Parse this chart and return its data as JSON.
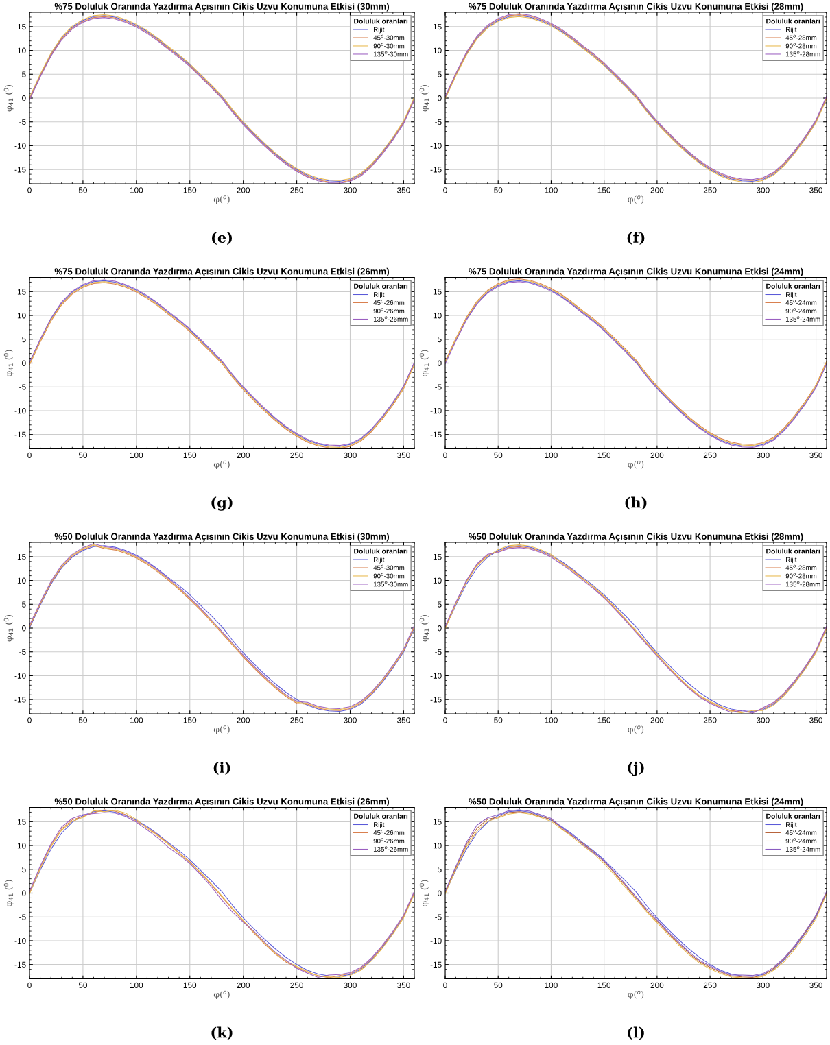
{
  "chart_data": [
    {
      "type": "line",
      "title": "%75 Doluluk Oranında Yazdırma Açısının Cikis Uzvu Konumuna Etkisi (30mm)",
      "xlabel": "φ($^{o}$)",
      "ylabel": "φ$_{41}$ ($^{0}$)",
      "legend_title": "Doluluk oranları",
      "annotations": [
        "(e)"
      ],
      "legend": "top right",
      "grid": true,
      "xlim": [
        0,
        360
      ],
      "ylim": [
        -18,
        18
      ],
      "xticks": [
        0,
        50,
        100,
        150,
        200,
        250,
        300,
        350
      ],
      "yticks": [
        -15,
        -10,
        -5,
        0,
        5,
        10,
        15
      ],
      "x": [
        0,
        10,
        20,
        30,
        40,
        50,
        60,
        70,
        80,
        90,
        100,
        110,
        120,
        130,
        140,
        150,
        160,
        170,
        180,
        190,
        200,
        210,
        220,
        230,
        240,
        250,
        260,
        270,
        280,
        290,
        300,
        310,
        320,
        330,
        340,
        350,
        360
      ],
      "series": [
        {
          "name": "Rijit",
          "color": "#5a5ad8",
          "values": [
            0,
            4.8,
            9.2,
            12.6,
            14.9,
            16.3,
            17.1,
            17.3,
            17.0,
            16.3,
            15.3,
            14.0,
            12.4,
            10.6,
            8.9,
            7.0,
            4.8,
            2.6,
            0.3,
            -2.6,
            -5.2,
            -7.5,
            -9.7,
            -11.7,
            -13.5,
            -15.0,
            -16.2,
            -17.0,
            -17.4,
            -17.5,
            -17.1,
            -16.0,
            -14.0,
            -11.4,
            -8.4,
            -5.0,
            0
          ]
        },
        {
          "name": "45$^{o}$-30mm",
          "color": "#d9804f",
          "values": [
            -0.2,
            4.6,
            9.0,
            12.4,
            14.7,
            16.1,
            16.9,
            17.1,
            16.8,
            16.1,
            15.1,
            13.8,
            12.2,
            10.4,
            8.7,
            6.8,
            4.6,
            2.4,
            0.1,
            -2.8,
            -5.4,
            -7.7,
            -9.9,
            -11.9,
            -13.7,
            -15.2,
            -16.4,
            -17.2,
            -17.6,
            -17.7,
            -17.3,
            -16.2,
            -14.2,
            -11.6,
            -8.6,
            -5.2,
            -0.2
          ]
        },
        {
          "name": "90$^{o}$-30mm",
          "color": "#e8b84a",
          "values": [
            0.2,
            5.0,
            9.4,
            12.8,
            15.1,
            16.5,
            17.3,
            17.5,
            17.2,
            16.5,
            15.5,
            14.2,
            12.6,
            10.8,
            9.1,
            7.2,
            5.0,
            2.8,
            0.5,
            -2.4,
            -5.0,
            -7.3,
            -9.5,
            -11.5,
            -13.3,
            -14.8,
            -16.0,
            -16.8,
            -17.2,
            -17.3,
            -16.9,
            -15.8,
            -13.8,
            -11.2,
            -8.2,
            -4.8,
            0.2
          ]
        },
        {
          "name": "135$^{o}$-30mm",
          "color": "#9b5fc0",
          "values": [
            -0.4,
            4.4,
            8.8,
            12.2,
            14.5,
            15.9,
            16.7,
            16.9,
            16.6,
            15.9,
            14.9,
            13.6,
            12.0,
            10.2,
            8.5,
            6.6,
            4.4,
            2.2,
            -0.1,
            -3.0,
            -5.6,
            -7.9,
            -10.1,
            -12.1,
            -13.9,
            -15.4,
            -16.6,
            -17.4,
            -17.8,
            -17.9,
            -17.5,
            -16.4,
            -14.4,
            -11.8,
            -8.8,
            -5.4,
            -0.4
          ]
        }
      ]
    },
    {
      "type": "line",
      "title": "%75 Doluluk Oranında Yazdırma Açısının Cikis Uzvu Konumuna Etkisi (28mm)",
      "xlabel": "φ($^{o}$)",
      "ylabel": "φ$_{41}$ ($^{0}$)",
      "legend_title": "Doluluk oranları",
      "annotations": [
        "(f)"
      ],
      "legend": "top right",
      "grid": true,
      "xlim": [
        0,
        360
      ],
      "ylim": [
        -18,
        18
      ],
      "xticks": [
        0,
        50,
        100,
        150,
        200,
        250,
        300,
        350
      ],
      "yticks": [
        -15,
        -10,
        -5,
        0,
        5,
        10,
        15
      ],
      "x": [
        0,
        10,
        20,
        30,
        40,
        50,
        60,
        70,
        80,
        90,
        100,
        110,
        120,
        130,
        140,
        150,
        160,
        170,
        180,
        190,
        200,
        210,
        220,
        230,
        240,
        250,
        260,
        270,
        280,
        290,
        300,
        310,
        320,
        330,
        340,
        350,
        360
      ],
      "series": [
        {
          "name": "Rijit",
          "color": "#5a5ad8",
          "values": [
            0,
            4.8,
            9.2,
            12.6,
            14.9,
            16.3,
            17.1,
            17.3,
            17.0,
            16.3,
            15.3,
            14.0,
            12.4,
            10.6,
            8.9,
            7.0,
            4.8,
            2.6,
            0.3,
            -2.6,
            -5.2,
            -7.5,
            -9.7,
            -11.7,
            -13.5,
            -15.0,
            -16.2,
            -17.0,
            -17.4,
            -17.5,
            -17.1,
            -16.0,
            -14.0,
            -11.4,
            -8.4,
            -5.0,
            0
          ]
        },
        {
          "name": "45$^{o}$-28mm",
          "color": "#d9804f",
          "values": [
            0.2,
            5.0,
            9.4,
            12.8,
            15.1,
            16.5,
            17.3,
            17.5,
            17.2,
            16.5,
            15.5,
            14.2,
            12.6,
            10.8,
            9.1,
            7.2,
            5.0,
            2.8,
            0.5,
            -2.4,
            -5.0,
            -7.3,
            -9.5,
            -11.5,
            -13.3,
            -14.8,
            -16.0,
            -16.8,
            -17.2,
            -17.3,
            -16.9,
            -15.8,
            -13.8,
            -11.2,
            -8.2,
            -4.8,
            0.2
          ]
        },
        {
          "name": "90$^{o}$-28mm",
          "color": "#e8b84a",
          "values": [
            -0.2,
            4.6,
            9.0,
            12.4,
            14.7,
            16.1,
            16.9,
            17.1,
            16.8,
            16.1,
            15.1,
            13.8,
            12.2,
            10.4,
            8.7,
            6.8,
            4.6,
            2.4,
            0.1,
            -2.8,
            -5.4,
            -7.7,
            -9.9,
            -11.9,
            -13.7,
            -15.2,
            -16.4,
            -17.2,
            -17.6,
            -17.7,
            -17.3,
            -16.2,
            -14.2,
            -11.6,
            -8.6,
            -5.2,
            -0.2
          ]
        },
        {
          "name": "135$^{o}$-28mm",
          "color": "#9b5fc0",
          "values": [
            0.4,
            5.2,
            9.6,
            13.0,
            15.3,
            16.7,
            17.5,
            17.7,
            17.4,
            16.7,
            15.7,
            14.4,
            12.8,
            11.0,
            9.3,
            7.4,
            5.2,
            3.0,
            0.7,
            -2.2,
            -4.8,
            -7.1,
            -9.3,
            -11.3,
            -13.1,
            -14.6,
            -15.8,
            -16.6,
            -17.0,
            -17.1,
            -16.7,
            -15.6,
            -13.6,
            -11.0,
            -8.0,
            -4.6,
            0.4
          ]
        }
      ]
    },
    {
      "type": "line",
      "title": "%75 Doluluk Oranında Yazdırma Açısının Cikis Uzvu Konumuna Etkisi (26mm)",
      "xlabel": "φ($^{o}$)",
      "ylabel": "φ$_{41}$ ($^{0}$)",
      "legend_title": "Doluluk oranları",
      "annotations": [
        "(g)"
      ],
      "legend": "top right",
      "grid": true,
      "xlim": [
        0,
        360
      ],
      "ylim": [
        -18,
        18
      ],
      "xticks": [
        0,
        50,
        100,
        150,
        200,
        250,
        300,
        350
      ],
      "yticks": [
        -15,
        -10,
        -5,
        0,
        5,
        10,
        15
      ],
      "x": [
        0,
        10,
        20,
        30,
        40,
        50,
        60,
        70,
        80,
        90,
        100,
        110,
        120,
        130,
        140,
        150,
        160,
        170,
        180,
        190,
        200,
        210,
        220,
        230,
        240,
        250,
        260,
        270,
        280,
        290,
        300,
        310,
        320,
        330,
        340,
        350,
        360
      ],
      "series": [
        {
          "name": "Rijit",
          "color": "#5a5ad8",
          "values": [
            0,
            4.8,
            9.2,
            12.6,
            14.9,
            16.3,
            17.1,
            17.3,
            17.0,
            16.3,
            15.3,
            14.0,
            12.4,
            10.6,
            8.9,
            7.0,
            4.8,
            2.6,
            0.3,
            -2.6,
            -5.2,
            -7.5,
            -9.7,
            -11.7,
            -13.5,
            -15.0,
            -16.2,
            -17.0,
            -17.4,
            -17.5,
            -17.1,
            -16.0,
            -14.0,
            -11.4,
            -8.4,
            -5.0,
            0
          ]
        },
        {
          "name": "45$^{o}$-26mm",
          "color": "#d9804f",
          "values": [
            -0.4,
            4.4,
            8.8,
            12.2,
            14.5,
            15.9,
            16.7,
            16.9,
            16.6,
            15.9,
            14.9,
            13.6,
            12.0,
            10.2,
            8.5,
            6.6,
            4.4,
            2.2,
            -0.1,
            -3.0,
            -5.6,
            -7.9,
            -10.1,
            -12.1,
            -13.9,
            -15.4,
            -16.6,
            -17.4,
            -17.8,
            -17.9,
            -17.5,
            -16.4,
            -14.4,
            -11.8,
            -8.8,
            -5.4,
            -0.4
          ]
        },
        {
          "name": "90$^{o}$-26mm",
          "color": "#e8b84a",
          "values": [
            -0.2,
            4.6,
            9.0,
            12.4,
            14.7,
            16.1,
            16.9,
            17.1,
            16.8,
            16.1,
            15.1,
            13.8,
            12.2,
            10.4,
            8.7,
            6.8,
            4.6,
            2.4,
            0.1,
            -2.8,
            -5.4,
            -7.7,
            -9.9,
            -11.9,
            -13.7,
            -15.2,
            -16.4,
            -17.2,
            -17.6,
            -17.7,
            -17.3,
            -16.2,
            -14.2,
            -11.6,
            -8.6,
            -5.2,
            -0.2
          ]
        },
        {
          "name": "135$^{o}$-26mm",
          "color": "#9b5fc0",
          "values": [
            0.2,
            5.0,
            9.4,
            12.8,
            15.1,
            16.5,
            17.3,
            17.5,
            17.2,
            16.5,
            15.5,
            14.2,
            12.6,
            10.8,
            9.1,
            7.2,
            5.0,
            2.8,
            0.5,
            -2.4,
            -5.0,
            -7.3,
            -9.5,
            -11.5,
            -13.3,
            -14.8,
            -16.0,
            -16.8,
            -17.2,
            -17.3,
            -16.9,
            -15.8,
            -13.8,
            -11.2,
            -8.2,
            -4.8,
            0.2
          ]
        }
      ]
    },
    {
      "type": "line",
      "title": "%75 Doluluk Oranında Yazdırma Açısının Cikis Uzvu Konumuna Etkisi (24mm)",
      "xlabel": "φ($^{o}$)",
      "ylabel": "φ$_{41}$ ($^{0}$)",
      "legend_title": "Doluluk oranları",
      "annotations": [
        "(h)"
      ],
      "legend": "top right",
      "grid": true,
      "xlim": [
        0,
        360
      ],
      "ylim": [
        -18,
        18
      ],
      "xticks": [
        0,
        50,
        100,
        150,
        200,
        250,
        300,
        350
      ],
      "yticks": [
        -15,
        -10,
        -5,
        0,
        5,
        10,
        15
      ],
      "x": [
        0,
        10,
        20,
        30,
        40,
        50,
        60,
        70,
        80,
        90,
        100,
        110,
        120,
        130,
        140,
        150,
        160,
        170,
        180,
        190,
        200,
        210,
        220,
        230,
        240,
        250,
        260,
        270,
        280,
        290,
        300,
        310,
        320,
        330,
        340,
        350,
        360
      ],
      "series": [
        {
          "name": "Rijit",
          "color": "#5a5ad8",
          "values": [
            0,
            4.8,
            9.2,
            12.6,
            14.9,
            16.3,
            17.1,
            17.3,
            17.0,
            16.3,
            15.3,
            14.0,
            12.4,
            10.6,
            8.9,
            7.0,
            4.8,
            2.6,
            0.3,
            -2.6,
            -5.2,
            -7.5,
            -9.7,
            -11.7,
            -13.5,
            -15.0,
            -16.2,
            -17.0,
            -17.4,
            -17.5,
            -17.1,
            -16.0,
            -14.0,
            -11.4,
            -8.4,
            -5.0,
            0
          ]
        },
        {
          "name": "45$^{o}$-24mm",
          "color": "#d9804f",
          "values": [
            0.4,
            5.2,
            9.6,
            13.0,
            15.3,
            16.7,
            17.5,
            17.7,
            17.4,
            16.7,
            15.7,
            14.4,
            12.8,
            11.0,
            9.3,
            7.4,
            5.2,
            3.0,
            0.7,
            -2.2,
            -4.8,
            -7.1,
            -9.3,
            -11.3,
            -13.1,
            -14.6,
            -15.8,
            -16.6,
            -17.0,
            -17.1,
            -16.7,
            -15.6,
            -13.6,
            -11.0,
            -8.0,
            -4.6,
            0.4
          ]
        },
        {
          "name": "90$^{o}$-24mm",
          "color": "#e8b84a",
          "values": [
            0.2,
            5.0,
            9.4,
            12.8,
            15.1,
            16.5,
            17.3,
            17.5,
            17.2,
            16.5,
            15.5,
            14.2,
            12.6,
            10.8,
            9.1,
            7.2,
            5.0,
            2.8,
            0.5,
            -2.4,
            -5.0,
            -7.3,
            -9.5,
            -11.5,
            -13.3,
            -14.8,
            -16.0,
            -16.8,
            -17.2,
            -17.3,
            -16.9,
            -15.8,
            -13.8,
            -11.2,
            -8.2,
            -4.8,
            0.2
          ]
        },
        {
          "name": "135$^{o}$-24mm",
          "color": "#9b5fc0",
          "values": [
            -0.2,
            4.6,
            9.0,
            12.4,
            14.7,
            16.1,
            16.9,
            17.1,
            16.8,
            16.1,
            15.1,
            13.8,
            12.2,
            10.4,
            8.7,
            6.8,
            4.6,
            2.4,
            0.1,
            -2.8,
            -5.4,
            -7.7,
            -9.9,
            -11.9,
            -13.7,
            -15.2,
            -16.4,
            -17.2,
            -17.6,
            -17.7,
            -17.3,
            -16.2,
            -14.2,
            -11.6,
            -8.6,
            -5.2,
            -0.2
          ]
        }
      ]
    },
    {
      "type": "line",
      "title": "%50 Doluluk Oranında Yazdırma Açısının Cikis Uzvu Konumuna Etkisi (30mm)",
      "xlabel": "φ($^{o}$)",
      "ylabel": "φ$_{41}$ ($^{0}$)",
      "legend_title": "Doluluk oranları",
      "annotations": [
        "(i)"
      ],
      "legend": "top right",
      "grid": true,
      "xlim": [
        0,
        360
      ],
      "ylim": [
        -18,
        18
      ],
      "xticks": [
        0,
        50,
        100,
        150,
        200,
        250,
        300,
        350
      ],
      "yticks": [
        -15,
        -10,
        -5,
        0,
        5,
        10,
        15
      ],
      "x": [
        0,
        10,
        20,
        30,
        40,
        50,
        60,
        70,
        80,
        90,
        100,
        110,
        120,
        130,
        140,
        150,
        160,
        170,
        180,
        190,
        200,
        210,
        220,
        230,
        240,
        250,
        260,
        270,
        280,
        290,
        300,
        310,
        320,
        330,
        340,
        350,
        360
      ],
      "series": [
        {
          "name": "Rijit",
          "color": "#5a5ad8",
          "values": [
            0,
            4.8,
            9.2,
            12.6,
            14.9,
            16.3,
            17.1,
            17.3,
            17.0,
            16.3,
            15.3,
            14.0,
            12.4,
            10.6,
            8.9,
            7.0,
            4.8,
            2.6,
            0.3,
            -2.6,
            -5.2,
            -7.5,
            -9.7,
            -11.7,
            -13.5,
            -15.0,
            -16.2,
            -17.0,
            -17.4,
            -17.5,
            -17.1,
            -16.0,
            -14.0,
            -11.4,
            -8.4,
            -5.0,
            0
          ]
        },
        {
          "name": "45$^{o}$-30mm",
          "color": "#d9804f",
          "values": [
            0.2,
            5.0,
            9.4,
            12.8,
            15.1,
            16.5,
            17.3,
            16.7,
            16.4,
            15.7,
            14.7,
            13.4,
            11.8,
            10.0,
            8.1,
            6.0,
            3.8,
            1.4,
            -1.1,
            -3.6,
            -6.1,
            -8.4,
            -10.6,
            -12.6,
            -14.4,
            -15.8,
            -16.0,
            -16.8,
            -17.2,
            -17.3,
            -16.9,
            -15.8,
            -13.8,
            -11.2,
            -8.2,
            -4.8,
            0.2
          ]
        },
        {
          "name": "90$^{o}$-30mm",
          "color": "#e8b84a",
          "values": [
            0.4,
            5.2,
            9.6,
            13.0,
            15.3,
            16.7,
            17.5,
            16.9,
            16.6,
            15.9,
            14.9,
            13.6,
            12.0,
            10.2,
            8.3,
            6.2,
            4.0,
            1.6,
            -0.9,
            -3.4,
            -5.9,
            -8.2,
            -10.4,
            -12.4,
            -14.2,
            -15.6,
            -15.8,
            -16.6,
            -17.0,
            -17.1,
            -16.7,
            -15.6,
            -13.6,
            -11.0,
            -8.0,
            -4.6,
            0.4
          ]
        },
        {
          "name": "135$^{o}$-30mm",
          "color": "#9b5fc0",
          "values": [
            0.6,
            5.4,
            9.8,
            13.2,
            15.5,
            16.9,
            17.7,
            17.1,
            16.8,
            16.1,
            15.1,
            13.8,
            12.2,
            10.4,
            8.5,
            6.4,
            4.2,
            1.8,
            -0.7,
            -3.2,
            -5.7,
            -8.0,
            -10.2,
            -12.2,
            -14.0,
            -15.4,
            -15.6,
            -16.4,
            -16.8,
            -16.9,
            -16.5,
            -15.4,
            -13.4,
            -10.8,
            -7.8,
            -4.4,
            0.6
          ]
        }
      ]
    },
    {
      "type": "line",
      "title": "%50 Doluluk Oranında Yazdırma Açısının Cikis Uzvu Konumuna Etkisi (28mm)",
      "xlabel": "φ($^{o}$)",
      "ylabel": "φ$_{41}$ ($^{0}$)",
      "legend_title": "Doluluk oranları",
      "annotations": [
        "(j)"
      ],
      "legend": "top right",
      "grid": true,
      "xlim": [
        0,
        360
      ],
      "ylim": [
        -18,
        18
      ],
      "xticks": [
        0,
        50,
        100,
        150,
        200,
        250,
        300,
        350
      ],
      "yticks": [
        -15,
        -10,
        -5,
        0,
        5,
        10,
        15
      ],
      "x": [
        0,
        10,
        20,
        30,
        40,
        50,
        60,
        70,
        80,
        90,
        100,
        110,
        120,
        130,
        140,
        150,
        160,
        170,
        180,
        190,
        200,
        210,
        220,
        230,
        240,
        250,
        260,
        270,
        280,
        290,
        300,
        310,
        320,
        330,
        340,
        350,
        360
      ],
      "series": [
        {
          "name": "Rijit",
          "color": "#5a5ad8",
          "values": [
            0,
            4.8,
            9.2,
            12.6,
            14.9,
            16.3,
            17.1,
            17.3,
            17.0,
            16.3,
            15.3,
            14.0,
            12.4,
            10.6,
            8.9,
            7.0,
            4.8,
            2.6,
            0.3,
            -2.6,
            -5.2,
            -7.5,
            -9.7,
            -11.7,
            -13.5,
            -15.0,
            -16.2,
            -17.0,
            -17.4,
            -17.5,
            -17.1,
            -16.0,
            -14.0,
            -11.4,
            -8.4,
            -5.0,
            0
          ]
        },
        {
          "name": "45$^{o}$-28mm",
          "color": "#d9804f",
          "values": [
            0.2,
            5.2,
            9.8,
            13.3,
            15.3,
            16.1,
            16.9,
            17.1,
            16.8,
            16.1,
            15.1,
            13.8,
            12.2,
            10.4,
            8.5,
            6.5,
            4.2,
            1.8,
            -0.7,
            -3.2,
            -5.7,
            -8.1,
            -10.4,
            -12.5,
            -14.3,
            -15.6,
            -16.6,
            -17.3,
            -17.6,
            -17.7,
            -16.9,
            -15.8,
            -13.8,
            -11.2,
            -8.2,
            -4.8,
            0.2
          ]
        },
        {
          "name": "90$^{o}$-28mm",
          "color": "#e8b84a",
          "values": [
            -0.2,
            5.0,
            9.6,
            13.1,
            15.1,
            16.5,
            17.3,
            17.5,
            17.2,
            16.5,
            15.5,
            13.6,
            12.0,
            10.2,
            8.7,
            6.7,
            4.4,
            2.0,
            -0.5,
            -3.0,
            -5.5,
            -7.9,
            -10.2,
            -12.3,
            -14.1,
            -15.4,
            -16.4,
            -17.5,
            -17.8,
            -17.3,
            -17.3,
            -16.2,
            -14.2,
            -11.6,
            -8.6,
            -5.2,
            -0.2
          ]
        },
        {
          "name": "135$^{o}$-28mm",
          "color": "#9b5fc0",
          "values": [
            0.4,
            5.4,
            10.0,
            13.5,
            15.5,
            15.9,
            16.7,
            16.9,
            16.6,
            15.9,
            14.9,
            13.4,
            11.8,
            10.0,
            8.3,
            6.3,
            4.0,
            1.6,
            -0.9,
            -3.4,
            -5.9,
            -8.3,
            -10.6,
            -12.7,
            -14.5,
            -15.8,
            -16.8,
            -17.7,
            -17.2,
            -17.9,
            -16.7,
            -15.6,
            -13.6,
            -11.0,
            -8.0,
            -4.6,
            0.4
          ]
        }
      ]
    },
    {
      "type": "line",
      "title": "%50 Doluluk Oranında Yazdırma Açısının Cikis Uzvu Konumuna Etkisi (26mm)",
      "xlabel": "φ($^{o}$)",
      "ylabel": "φ$_{41}$ ($^{0}$)",
      "legend_title": "Doluluk oranları",
      "annotations": [
        "(k)"
      ],
      "legend": "top right",
      "grid": true,
      "xlim": [
        0,
        360
      ],
      "ylim": [
        -18,
        18
      ],
      "xticks": [
        0,
        50,
        100,
        150,
        200,
        250,
        300,
        350
      ],
      "yticks": [
        -15,
        -10,
        -5,
        0,
        5,
        10,
        15
      ],
      "x": [
        0,
        10,
        20,
        30,
        40,
        50,
        60,
        70,
        80,
        90,
        100,
        110,
        120,
        130,
        140,
        150,
        160,
        170,
        180,
        190,
        200,
        210,
        220,
        230,
        240,
        250,
        260,
        270,
        280,
        290,
        300,
        310,
        320,
        330,
        340,
        350,
        360
      ],
      "series": [
        {
          "name": "Rijit",
          "color": "#5a5ad8",
          "values": [
            0,
            4.8,
            9.2,
            12.6,
            14.9,
            16.3,
            17.1,
            17.3,
            17.0,
            16.3,
            15.3,
            14.0,
            12.4,
            10.6,
            8.9,
            7.0,
            4.8,
            2.6,
            0.3,
            -2.6,
            -5.2,
            -7.5,
            -9.7,
            -11.7,
            -13.5,
            -15.0,
            -16.2,
            -17.0,
            -17.4,
            -17.5,
            -17.1,
            -16.0,
            -14.0,
            -11.4,
            -8.4,
            -5.0,
            0
          ]
        },
        {
          "name": "45$^{o}$-26mm",
          "color": "#d9804f",
          "values": [
            0.2,
            5.4,
            10.0,
            13.5,
            15.4,
            16.1,
            16.9,
            17.5,
            17.2,
            16.5,
            15.1,
            13.8,
            12.2,
            10.4,
            8.5,
            6.6,
            4.2,
            1.8,
            -0.8,
            -3.4,
            -5.9,
            -8.4,
            -10.7,
            -12.8,
            -14.5,
            -15.6,
            -16.6,
            -17.3,
            -17.8,
            -17.3,
            -16.9,
            -15.8,
            -13.8,
            -11.2,
            -8.2,
            -4.8,
            0.2
          ]
        },
        {
          "name": "90$^{o}$-26mm",
          "color": "#e8b84a",
          "values": [
            -0.2,
            5.1,
            9.7,
            13.2,
            15.1,
            15.9,
            17.3,
            17.1,
            17.4,
            16.8,
            15.5,
            13.6,
            12.0,
            10.2,
            8.3,
            6.4,
            4.4,
            2.0,
            -0.6,
            -3.2,
            -5.7,
            -8.2,
            -10.5,
            -12.6,
            -14.3,
            -15.4,
            -16.4,
            -17.5,
            -17.6,
            -17.7,
            -17.3,
            -16.2,
            -14.2,
            -11.6,
            -8.6,
            -5.2,
            -0.2
          ]
        },
        {
          "name": "135$^{o}$-26mm",
          "color": "#9b5fc0",
          "values": [
            0.4,
            5.7,
            10.3,
            13.9,
            15.7,
            16.5,
            16.7,
            16.9,
            16.8,
            16.1,
            14.9,
            13.3,
            11.6,
            9.6,
            8.0,
            6.2,
            3.9,
            1.4,
            -1.5,
            -4.0,
            -6.1,
            -8.0,
            -10.3,
            -12.4,
            -14.1,
            -15.8,
            -16.8,
            -17.7,
            -17.2,
            -17.1,
            -16.7,
            -15.6,
            -13.6,
            -11.0,
            -8.0,
            -4.6,
            0.4
          ]
        }
      ]
    },
    {
      "type": "line",
      "title": "%50 Doluluk Oranında Yazdırma Açısının Cikis Uzvu Konumuna Etkisi (24mm)",
      "xlabel": "φ($^{o}$)",
      "ylabel": "φ$_{41}$ ($^{0}$)",
      "legend_title": "Doluluk oranları",
      "annotations": [
        "(l)"
      ],
      "legend": "top right",
      "grid": true,
      "xlim": [
        0,
        360
      ],
      "ylim": [
        -18,
        18
      ],
      "xticks": [
        0,
        50,
        100,
        150,
        200,
        250,
        300,
        350
      ],
      "yticks": [
        -15,
        -10,
        -5,
        0,
        5,
        10,
        15
      ],
      "x": [
        0,
        10,
        20,
        30,
        40,
        50,
        60,
        70,
        80,
        90,
        100,
        110,
        120,
        130,
        140,
        150,
        160,
        170,
        180,
        190,
        200,
        210,
        220,
        230,
        240,
        250,
        260,
        270,
        280,
        290,
        300,
        310,
        320,
        330,
        340,
        350,
        360
      ],
      "series": [
        {
          "name": "Rijit",
          "color": "#5a5ad8",
          "values": [
            0,
            4.8,
            9.2,
            12.6,
            14.9,
            16.3,
            17.1,
            17.3,
            17.0,
            16.3,
            15.3,
            14.0,
            12.4,
            10.6,
            8.9,
            7.0,
            4.8,
            2.6,
            0.3,
            -2.6,
            -5.2,
            -7.5,
            -9.7,
            -11.7,
            -13.5,
            -15.0,
            -16.2,
            -17.0,
            -17.4,
            -17.5,
            -17.1,
            -16.0,
            -14.0,
            -11.4,
            -8.4,
            -5.0,
            0
          ]
        },
        {
          "name": "45$^{o}$-24mm",
          "color": "#b8643c",
          "values": [
            0.2,
            5.3,
            10.2,
            13.6,
            15.5,
            16.0,
            16.9,
            17.1,
            16.8,
            16.1,
            15.5,
            13.6,
            12.0,
            10.4,
            8.7,
            6.6,
            4.2,
            1.6,
            -1.0,
            -3.6,
            -5.9,
            -8.3,
            -10.5,
            -12.6,
            -14.4,
            -15.6,
            -16.6,
            -17.4,
            -17.6,
            -17.7,
            -17.3,
            -15.8,
            -13.8,
            -11.2,
            -8.2,
            -4.8,
            0.2
          ]
        },
        {
          "name": "90$^{o}$-24mm",
          "color": "#e8b84a",
          "values": [
            -0.2,
            5.0,
            9.7,
            13.0,
            15.1,
            15.8,
            16.6,
            16.9,
            16.6,
            15.9,
            15.1,
            13.4,
            11.8,
            10.0,
            8.3,
            6.2,
            3.8,
            1.2,
            -1.3,
            -3.9,
            -6.2,
            -8.6,
            -10.8,
            -12.9,
            -14.7,
            -15.9,
            -16.9,
            -17.6,
            -17.8,
            -17.9,
            -17.5,
            -16.2,
            -14.4,
            -11.8,
            -8.8,
            -5.4,
            -0.2
          ]
        },
        {
          "name": "135$^{o}$-24mm",
          "color": "#8a5cc0",
          "values": [
            0.4,
            5.6,
            10.6,
            14.3,
            15.8,
            16.5,
            17.3,
            17.5,
            17.2,
            16.5,
            15.7,
            13.8,
            12.2,
            10.2,
            8.5,
            6.8,
            4.4,
            1.9,
            -0.7,
            -3.3,
            -5.6,
            -8.0,
            -10.2,
            -12.3,
            -14.1,
            -15.3,
            -16.4,
            -17.2,
            -17.2,
            -17.3,
            -16.9,
            -15.6,
            -13.6,
            -11.0,
            -8.0,
            -4.6,
            0.4
          ]
        }
      ]
    }
  ]
}
